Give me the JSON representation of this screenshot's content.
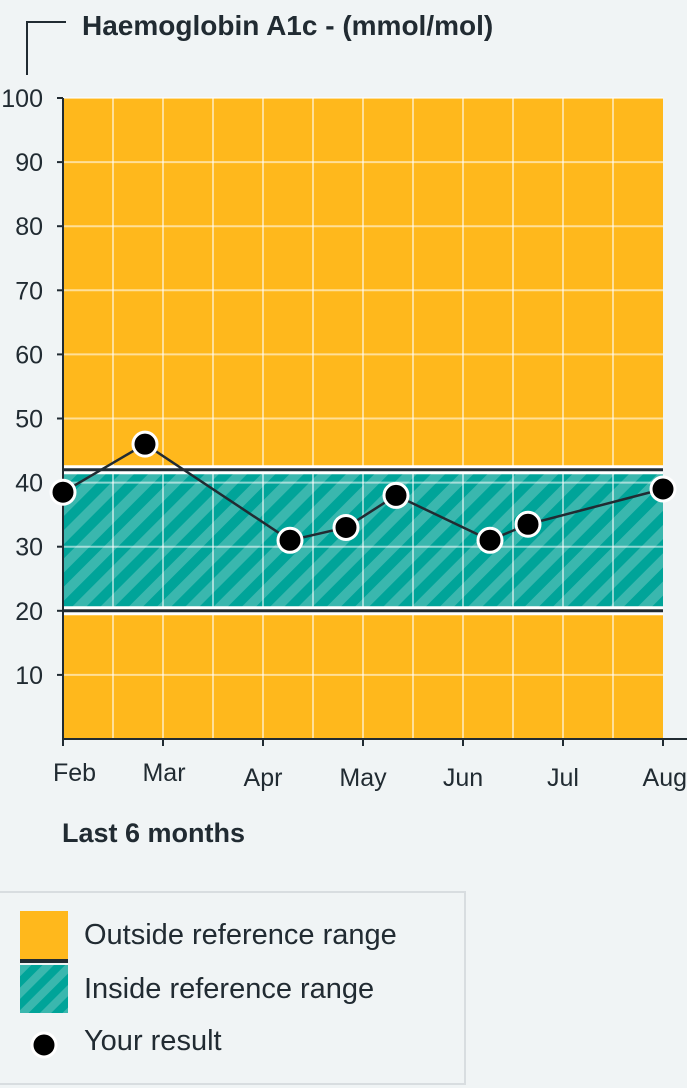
{
  "chart_data": {
    "type": "line",
    "title": "Haemoglobin A1c - (mmol/mol)",
    "x_ticks": [
      "Feb",
      "Mar",
      "Apr",
      "May",
      "Jun",
      "Jul",
      "Aug"
    ],
    "y_ticks": [
      "10",
      "20",
      "30",
      "40",
      "50",
      "60",
      "70",
      "80",
      "90",
      "100"
    ],
    "ylim": [
      0,
      100
    ],
    "xlim": [
      "Feb",
      "Aug"
    ],
    "grid": true,
    "reference_range": [
      20,
      42
    ],
    "series": [
      {
        "x": [
          "Feb",
          "Mar -0.2",
          "Apr +0.3",
          "Apr +0.8",
          "May +0.3",
          "Jun +0.3",
          "Jun +0.7",
          "Aug"
        ],
        "x_month_index": [
          0,
          0.82,
          2.27,
          2.83,
          3.33,
          4.27,
          4.65,
          6.0
        ],
        "values": [
          38.5,
          46,
          31,
          33,
          38,
          31,
          33.5,
          39
        ]
      }
    ],
    "caption": "Last 6 months",
    "colors": {
      "outside": "#ffb81c",
      "inside": "#00a499",
      "inside_stripe": "#3ab7ae",
      "grid": "#f3d38f",
      "range_line": "#212b32",
      "point": "#000000",
      "background": "#f0f4f5"
    }
  },
  "legend": {
    "outside": "Outside reference range",
    "inside": "Inside reference range",
    "result": "Your result"
  }
}
